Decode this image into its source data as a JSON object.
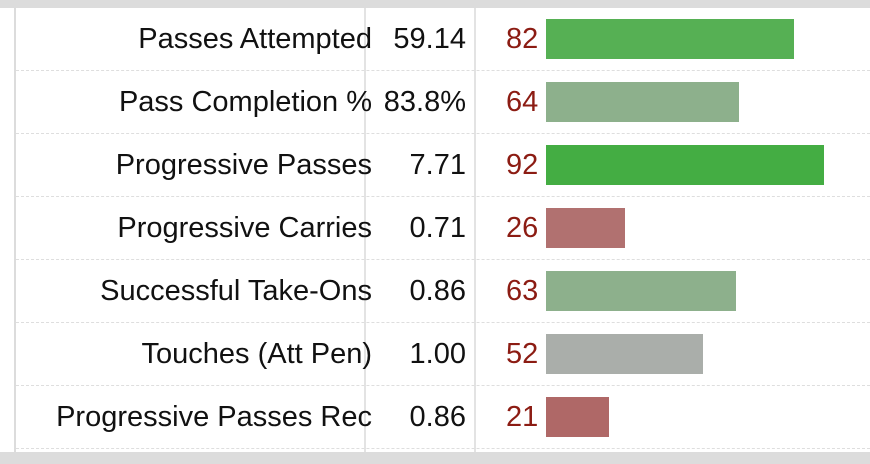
{
  "rows": [
    {
      "label": "Passes Attempted",
      "value": "59.14",
      "percentile": 82,
      "percentile_text": "82",
      "bar_color": "#56b054"
    },
    {
      "label": "Pass Completion %",
      "value": "83.8%",
      "percentile": 64,
      "percentile_text": "64",
      "bar_color": "#8db08c"
    },
    {
      "label": "Progressive Passes",
      "value": "7.71",
      "percentile": 92,
      "percentile_text": "92",
      "bar_color": "#44ad43"
    },
    {
      "label": "Progressive Carries",
      "value": "0.71",
      "percentile": 26,
      "percentile_text": "26",
      "bar_color": "#b17170"
    },
    {
      "label": "Successful Take-Ons",
      "value": "0.86",
      "percentile": 63,
      "percentile_text": "63",
      "bar_color": "#8db08c"
    },
    {
      "label": "Touches (Att Pen)",
      "value": "1.00",
      "percentile": 52,
      "percentile_text": "52",
      "bar_color": "#aaaeaa"
    },
    {
      "label": "Progressive Passes Rec",
      "value": "0.86",
      "percentile": 21,
      "percentile_text": "21",
      "bar_color": "#af6867"
    }
  ],
  "colors": {
    "percentile_text": "#8c1c13",
    "border": "#dcdcdc"
  }
}
